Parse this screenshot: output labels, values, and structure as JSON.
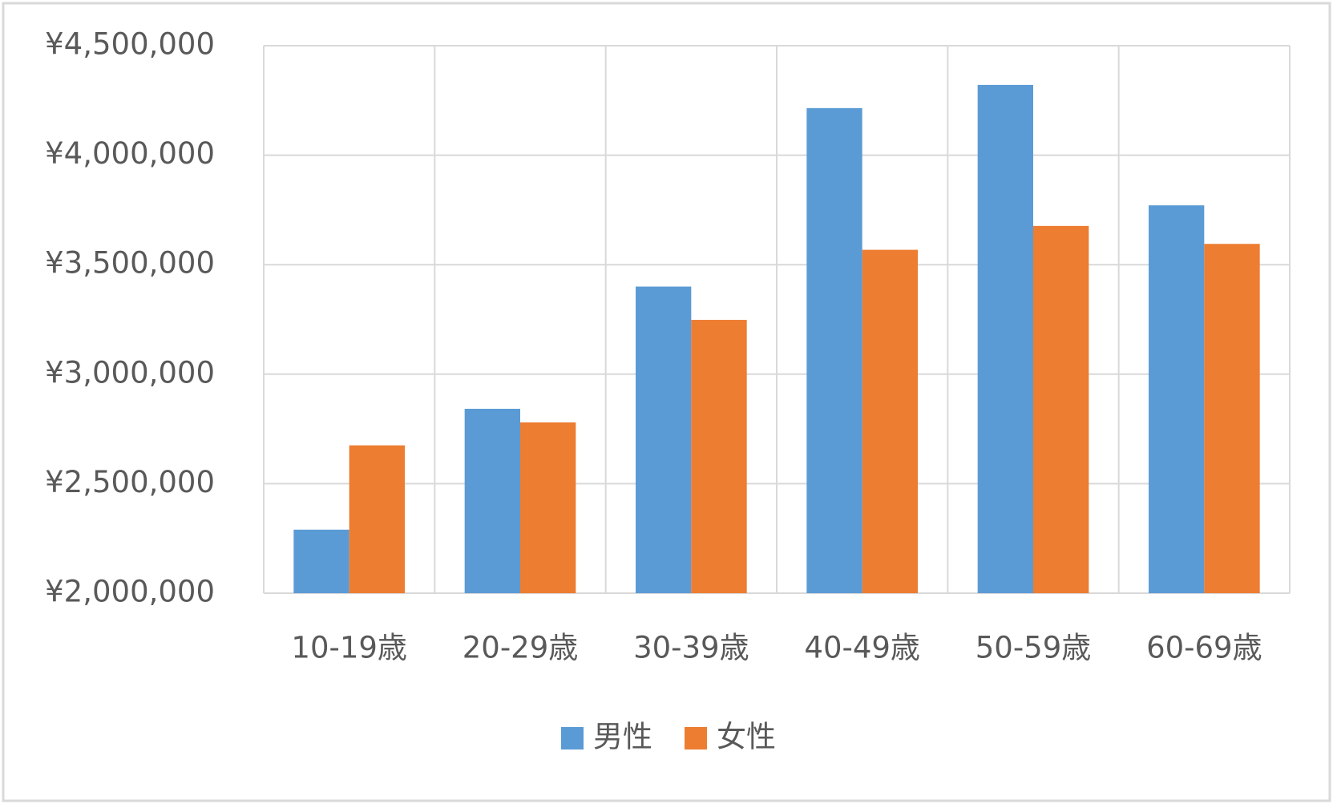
{
  "chart_data": {
    "type": "bar",
    "categories": [
      "10-19歳",
      "20-29歳",
      "30-39歳",
      "40-49歳",
      "50-59歳",
      "60-69歳"
    ],
    "series": [
      {
        "name": "男性",
        "color": "#5b9bd5",
        "values": [
          2290000,
          2842000,
          3400000,
          4215000,
          4321000,
          3771000
        ]
      },
      {
        "name": "女性",
        "color": "#ed7d31",
        "values": [
          2675000,
          2780000,
          3248000,
          3568000,
          3677000,
          3595000
        ]
      }
    ],
    "ylim": [
      2000000,
      4500000
    ],
    "yticks": [
      {
        "value": 2000000,
        "label": "¥2,000,000"
      },
      {
        "value": 2500000,
        "label": "¥2,500,000"
      },
      {
        "value": 3000000,
        "label": "¥3,000,000"
      },
      {
        "value": 3500000,
        "label": "¥3,500,000"
      },
      {
        "value": 4000000,
        "label": "¥4,000,000"
      },
      {
        "value": 4500000,
        "label": "¥4,500,000"
      }
    ],
    "grid": true,
    "legend": "bottom"
  }
}
